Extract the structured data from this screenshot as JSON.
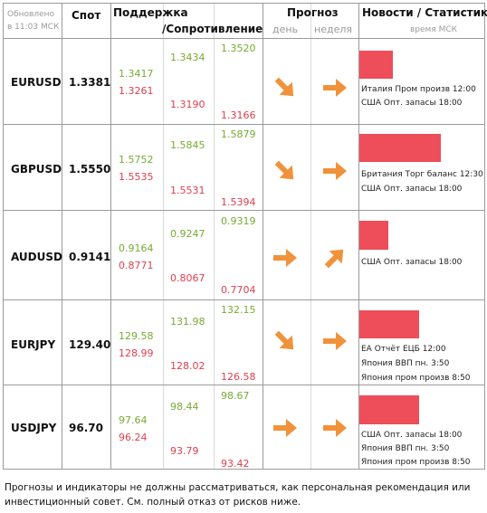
{
  "header": {
    "updated_line1": "Обновлено",
    "updated_line2": "в 11:03 МСК",
    "spot": "Спот",
    "support": "Поддержка",
    "resistance": "/Сопротивление",
    "forecast": "Прогноз",
    "day": "день",
    "week": "неделя",
    "news": "Новости / Статистика",
    "time_note": "время МСК"
  },
  "colors": {
    "support": "#77aa33",
    "resistance": "#e0404f",
    "arrow": "#f0923a",
    "bar": "#ee4d5a"
  },
  "rows": [
    {
      "pair": "EURUSD",
      "spot": "1.3381",
      "s1": "1.3417",
      "s2": "1.3434",
      "s3": "1.3520",
      "r1": "1.3261",
      "r2": "1.3190",
      "r3": "1.3166",
      "day_icon": "arrow-down-right-icon",
      "week_icon": "arrow-right-icon",
      "bar_fraction": 0.4,
      "news": [
        "Италия Пром произв 12:00",
        "США Опт. запасы 18:00"
      ]
    },
    {
      "pair": "GBPUSD",
      "spot": "1.5550",
      "s1": "1.5752",
      "s2": "1.5845",
      "s3": "1.5879",
      "r1": "1.5535",
      "r2": "1.5531",
      "r3": "1.5394",
      "day_icon": "arrow-down-right-icon",
      "week_icon": "arrow-right-icon",
      "bar_fraction": 0.98,
      "news": [
        "Британия Торг баланс 12:30",
        "США Опт. запасы 18:00"
      ]
    },
    {
      "pair": "AUDUSD",
      "spot": "0.9141",
      "s1": "0.9164",
      "s2": "0.9247",
      "s3": "0.9319",
      "r1": "0.8771",
      "r2": "0.8067",
      "r3": "0.7704",
      "day_icon": "arrow-right-icon",
      "week_icon": "arrow-up-right-icon",
      "bar_fraction": 0.35,
      "news": [
        "США Опт. запасы 18:00"
      ]
    },
    {
      "pair": "EURJPY",
      "spot": "129.40",
      "s1": "129.58",
      "s2": "131.98",
      "s3": "132.15",
      "r1": "128.99",
      "r2": "128.02",
      "r3": "126.58",
      "day_icon": "arrow-down-right-icon",
      "week_icon": "arrow-right-icon",
      "bar_fraction": 0.72,
      "news": [
        "ЕА Отчёт ЕЦБ 12:00",
        "Япония ВВП пн. 3:50",
        "Япония пром произв 8:50"
      ]
    },
    {
      "pair": "USDJPY",
      "spot": "96.70",
      "s1": "97.64",
      "s2": "98.44",
      "s3": "98.67",
      "r1": "96.24",
      "r2": "93.79",
      "r3": "93.42",
      "day_icon": "arrow-right-icon",
      "week_icon": "arrow-right-icon",
      "bar_fraction": 0.72,
      "news": [
        "США Опт. запасы 18:00",
        "Япония ВВП пн. 3:50",
        "Япония пром произв 8:50"
      ]
    }
  ],
  "footer": "Прогнозы и индикаторы не должны рассматриваться, как персональная рекомендация или инвестиционный совет. См. полный отказ от рисков ниже."
}
